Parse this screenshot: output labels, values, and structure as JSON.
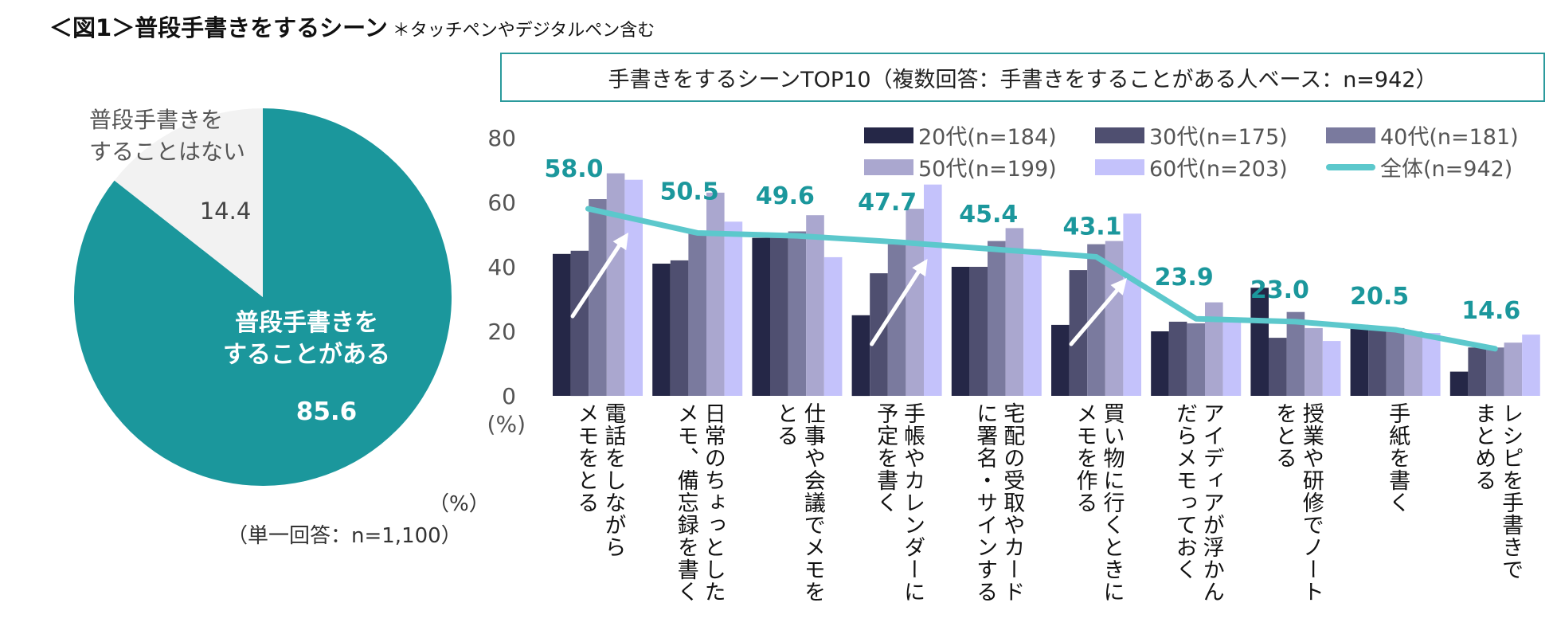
{
  "figure": {
    "title": "＜図1＞普段手書きをするシーン",
    "note": "＊タッチペンやデジタルペン含む"
  },
  "chart_data": [
    {
      "type": "pie",
      "title": "",
      "slices": [
        {
          "label": "普段手書きをすることがある",
          "label_lines": [
            "普段手書きを",
            "することがある"
          ],
          "value": 85.6,
          "color": "#1b979c"
        },
        {
          "label": "普段手書きをすることはない",
          "label_lines": [
            "普段手書きを",
            "することはない"
          ],
          "value": 14.4,
          "color": "#f2f2f2"
        }
      ],
      "unit_label": "（%）",
      "base_note": "（単一回答：n=1,100）",
      "start": "top",
      "direction": "counterclockwise-for-minor-slice"
    },
    {
      "type": "bar",
      "title": "手書きをするシーンTOP10（複数回答：手書きをすることがある人ベース：n=942）",
      "xlabel": "",
      "ylabel": "(%)",
      "ylim": [
        0,
        80
      ],
      "yticks": [
        0,
        20,
        40,
        60,
        80
      ],
      "grid": false,
      "legend_position": "top-right",
      "categories": [
        "電話をしながらメモをとる",
        "日常のちょっとしたメモ、備忘録を書く",
        "仕事や会議でメモをとる",
        "手帳やカレンダーに予定を書く",
        "宅配の受取やカードに署名・サインする",
        "買い物に行くときにメモを作る",
        "アイディアが浮かんだらメモっておく",
        "授業や研修でノートをとる",
        "手紙を書く",
        "レシピを手書きでまとめる"
      ],
      "category_label_columns": [
        [
          "電話をしながら",
          "メモをとる"
        ],
        [
          "日常のちょっとした",
          "メモ、備忘録を書く"
        ],
        [
          "仕事や会議でメモを",
          "とる"
        ],
        [
          "手帳やカレンダーに",
          "予定を書く"
        ],
        [
          "宅配の受取やカード",
          "に署名・サインする"
        ],
        [
          "買い物に行くときに",
          "メモを作る"
        ],
        [
          "アイディアが浮かん",
          "だらメモっておく"
        ],
        [
          "授業や研修でノート",
          "をとる"
        ],
        [
          "手紙を書く"
        ],
        [
          "レシピを手書きで",
          "まとめる"
        ]
      ],
      "series": [
        {
          "name": "20代(n=184)",
          "color": "#252747",
          "values": [
            44,
            41,
            49,
            25,
            40,
            22,
            20,
            33.5,
            22,
            7.5
          ]
        },
        {
          "name": "30代(n=175)",
          "color": "#4f4f70",
          "values": [
            45,
            42,
            49,
            38,
            40,
            39,
            23,
            18,
            21.5,
            15
          ]
        },
        {
          "name": "40代(n=181)",
          "color": "#7a7a9e",
          "values": [
            61,
            50.5,
            51,
            47,
            48,
            47,
            22.5,
            26,
            21,
            15
          ]
        },
        {
          "name": "50代(n=199)",
          "color": "#aaa7cf",
          "values": [
            69,
            63,
            56,
            58,
            52,
            48,
            29,
            21,
            20,
            16.5
          ]
        },
        {
          "name": "60代(n=203)",
          "color": "#c4c2fb",
          "values": [
            67,
            54,
            43,
            65.5,
            45.5,
            56.5,
            23,
            17,
            19.5,
            19
          ]
        }
      ],
      "line_series": {
        "name": "全体(n=942)",
        "color": "#5cc8cc",
        "label_color": "#1b979c",
        "values": [
          58.0,
          50.5,
          49.6,
          47.7,
          45.4,
          43.1,
          23.9,
          23.0,
          20.5,
          14.6
        ],
        "data_labels": [
          "58.0",
          "50.5",
          "49.6",
          "47.7",
          "45.4",
          "43.1",
          "23.9",
          "23.0",
          "20.5",
          "14.6"
        ]
      },
      "annotations": [
        {
          "type": "arrow",
          "category_index": 0,
          "meaning": "increase with age"
        },
        {
          "type": "arrow",
          "category_index": 3,
          "meaning": "increase with age"
        },
        {
          "type": "arrow",
          "category_index": 5,
          "meaning": "increase with age"
        }
      ]
    }
  ]
}
